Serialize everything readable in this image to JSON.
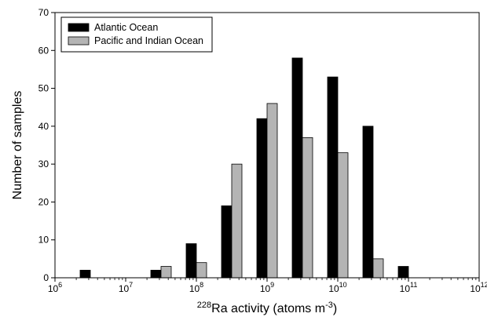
{
  "chart_data": {
    "type": "bar",
    "xscale": "log10",
    "xlim_exponents": [
      6,
      12
    ],
    "x_tick_labels": [
      {
        "base": "10",
        "exp": "6"
      },
      {
        "base": "10",
        "exp": "7"
      },
      {
        "base": "10",
        "exp": "8"
      },
      {
        "base": "10",
        "exp": "9"
      },
      {
        "base": "10",
        "exp": "10"
      },
      {
        "base": "10",
        "exp": "11"
      },
      {
        "base": "10",
        "exp": "12"
      }
    ],
    "ylim": [
      0,
      70
    ],
    "y_ticks": [
      0,
      10,
      20,
      30,
      40,
      50,
      60,
      70
    ],
    "ylabel": "Number of samples",
    "xlabel": {
      "pre": "228",
      "main": "Ra activity (atoms m",
      "sup": "-3",
      "post": ")"
    },
    "bin_centers_log10": [
      6.5,
      7.0,
      7.5,
      8.0,
      8.5,
      9.0,
      9.5,
      10.0,
      10.5,
      11.0,
      11.5
    ],
    "series": [
      {
        "name": "Atlantic Ocean",
        "color": "#000000",
        "values": [
          2,
          0,
          2,
          9,
          19,
          42,
          58,
          53,
          40,
          3,
          0
        ]
      },
      {
        "name": "Pacific and Indian Ocean",
        "color": "#b4b4b4",
        "values": [
          0,
          0,
          3,
          4,
          30,
          46,
          37,
          33,
          5,
          0,
          0
        ]
      }
    ],
    "legend_position": "top-left",
    "grid": false
  }
}
